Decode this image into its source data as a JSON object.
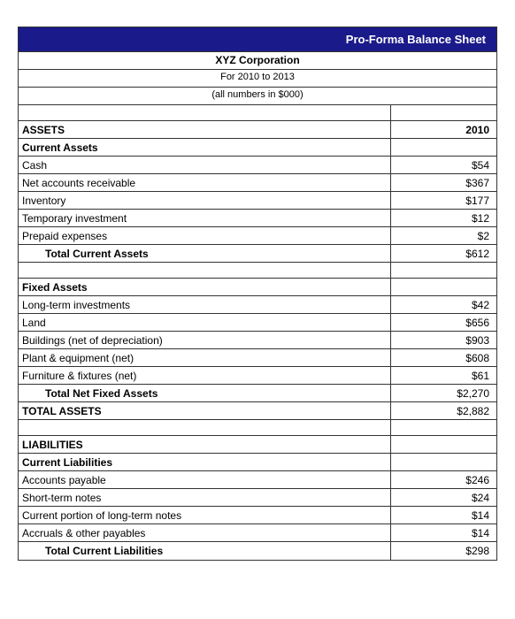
{
  "title": "Pro-Forma Balance Sheet",
  "company": "XYZ Corporation",
  "period": "For 2010 to 2013",
  "note": "(all numbers in $000)",
  "year": "2010",
  "colors": {
    "title_bg": "#1a1a8a",
    "title_fg": "#ffffff",
    "border": "#333333",
    "bg": "#ffffff"
  },
  "sections": {
    "assets_header": "ASSETS",
    "current_assets": {
      "header": "Current Assets",
      "items": [
        {
          "label": "Cash",
          "value": "$54"
        },
        {
          "label": "Net accounts receivable",
          "value": "$367"
        },
        {
          "label": "Inventory",
          "value": "$177"
        },
        {
          "label": "Temporary investment",
          "value": "$12"
        },
        {
          "label": "Prepaid expenses",
          "value": "$2"
        }
      ],
      "total_label": "Total Current Assets",
      "total_value": "$612"
    },
    "fixed_assets": {
      "header": "Fixed Assets",
      "items": [
        {
          "label": "Long-term investments",
          "value": "$42"
        },
        {
          "label": "Land",
          "value": "$656"
        },
        {
          "label": "Buildings (net of depreciation)",
          "value": "$903"
        },
        {
          "label": "Plant & equipment (net)",
          "value": "$608"
        },
        {
          "label": "Furniture & fixtures (net)",
          "value": "$61"
        }
      ],
      "total_label": "Total Net Fixed Assets",
      "total_value": "$2,270"
    },
    "total_assets_label": "TOTAL ASSETS",
    "total_assets_value": "$2,882",
    "liabilities_header": "LIABILITIES",
    "current_liabilities": {
      "header": "Current Liabilities",
      "items": [
        {
          "label": "Accounts payable",
          "value": "$246"
        },
        {
          "label": "Short-term notes",
          "value": "$24"
        },
        {
          "label": "Current portion of long-term notes",
          "value": "$14"
        },
        {
          "label": "Accruals & other payables",
          "value": "$14"
        }
      ],
      "total_label": "Total Current Liabilities",
      "total_value": "$298"
    }
  }
}
